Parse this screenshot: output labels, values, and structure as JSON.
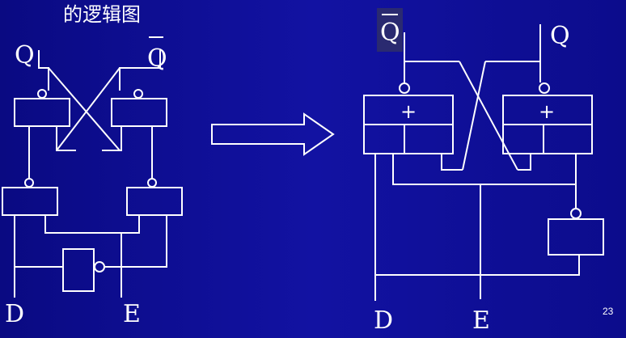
{
  "title": "的逻辑图",
  "page_number": "23",
  "left_diagram": {
    "labels": {
      "q": "Q",
      "q_bar": "Q",
      "d": "D",
      "e": "E"
    }
  },
  "right_diagram": {
    "labels": {
      "q_bar": "Q",
      "q": "Q",
      "d": "D",
      "e": "E"
    },
    "gate_symbols": {
      "top_left": "+",
      "top_right": "+"
    }
  },
  "colors": {
    "background": "#0e0e92",
    "line": "#ffffff",
    "highlight": "#2a2a70"
  }
}
